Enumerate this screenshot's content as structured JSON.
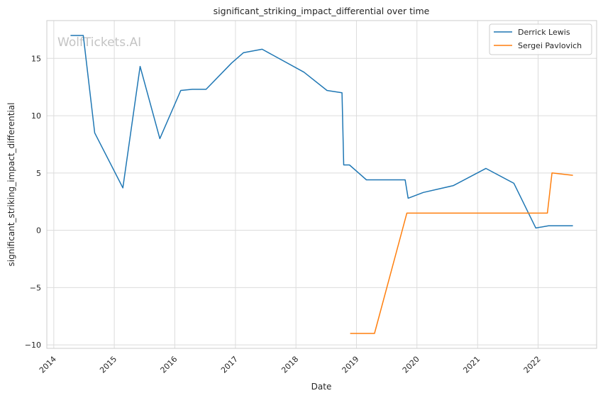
{
  "watermark": "WolfTickets.AI",
  "chart_data": {
    "type": "line",
    "title": "significant_striking_impact_differential over time",
    "xlabel": "Date",
    "ylabel": "significant_striking_impact_differential",
    "x_ticks": [
      "2014",
      "2015",
      "2016",
      "2017",
      "2018",
      "2019",
      "2020",
      "2021",
      "2022"
    ],
    "y_ticks": [
      -10,
      -5,
      0,
      5,
      10,
      15
    ],
    "ylim": [
      -10.3,
      18.3
    ],
    "xlim": [
      "2013-11-20",
      "2022-12-20"
    ],
    "grid": true,
    "legend_position": "top-right",
    "series": [
      {
        "name": "Derrick Lewis",
        "color": "#1f77b4",
        "points": [
          [
            "2014-04-12",
            17.0
          ],
          [
            "2014-06-28",
            17.0
          ],
          [
            "2014-09-05",
            8.5
          ],
          [
            "2015-02-22",
            3.7
          ],
          [
            "2015-06-06",
            14.3
          ],
          [
            "2015-10-03",
            8.0
          ],
          [
            "2016-02-06",
            12.2
          ],
          [
            "2016-04-16",
            12.3
          ],
          [
            "2016-07-08",
            12.3
          ],
          [
            "2016-12-09",
            14.6
          ],
          [
            "2017-02-19",
            15.5
          ],
          [
            "2017-06-11",
            15.8
          ],
          [
            "2018-02-18",
            13.8
          ],
          [
            "2018-07-07",
            12.2
          ],
          [
            "2018-10-06",
            12.0
          ],
          [
            "2018-10-16",
            5.7
          ],
          [
            "2018-11-20",
            5.7
          ],
          [
            "2019-03-02",
            4.4
          ],
          [
            "2019-10-22",
            4.4
          ],
          [
            "2019-11-09",
            2.8
          ],
          [
            "2020-02-08",
            3.3
          ],
          [
            "2020-08-08",
            3.9
          ],
          [
            "2021-02-20",
            5.4
          ],
          [
            "2021-08-08",
            4.1
          ],
          [
            "2021-12-18",
            0.2
          ],
          [
            "2022-03-05",
            0.4
          ],
          [
            "2022-07-30",
            0.4
          ]
        ]
      },
      {
        "name": "Sergei Pavlovich",
        "color": "#ff7f0e",
        "points": [
          [
            "2018-11-24",
            -9.0
          ],
          [
            "2019-04-20",
            -9.0
          ],
          [
            "2019-11-01",
            1.5
          ],
          [
            "2022-02-26",
            1.5
          ],
          [
            "2022-03-26",
            5.0
          ],
          [
            "2022-07-30",
            4.8
          ]
        ]
      }
    ]
  }
}
